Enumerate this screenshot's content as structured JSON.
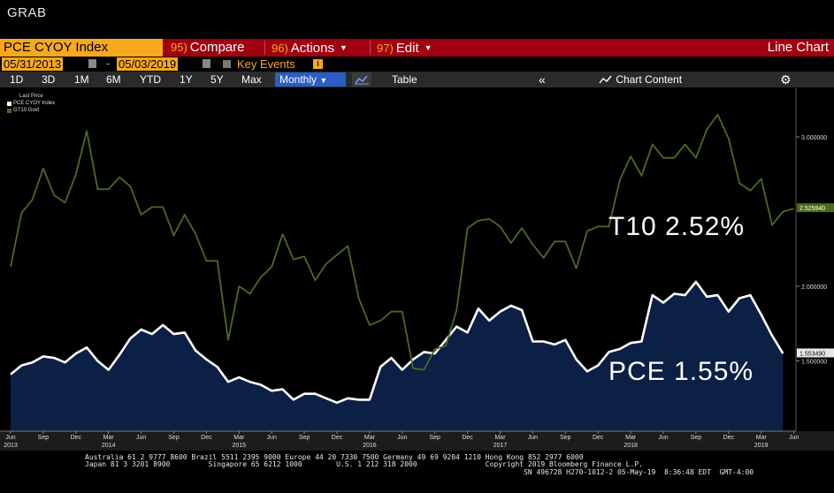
{
  "app": {
    "window_title": "GRAB"
  },
  "command_bar": {
    "ticker": "PCE CYOY Index",
    "compare": {
      "num": "95)",
      "label": "Compare"
    },
    "actions": {
      "num": "96)",
      "label": "Actions"
    },
    "edit": {
      "num": "97)",
      "label": "Edit"
    },
    "view_label": "Line Chart"
  },
  "date_range": {
    "start": "05/31/2013",
    "separator": "-",
    "end": "05/03/2019",
    "key_events_label": "Key Events",
    "info_icon": "i"
  },
  "range_buttons": [
    "1D",
    "3D",
    "1M",
    "6M",
    "YTD",
    "1Y",
    "5Y",
    "Max"
  ],
  "frequency": "Monthly",
  "table_label": "Table",
  "chart_content_label": "Chart Content",
  "icons": {
    "collapse": "double-chevron-left-icon",
    "chart_content": "chart-icon",
    "settings": "gear-icon",
    "calendar": "calendar-icon"
  },
  "colors": {
    "ticker_bg": "#f7a81b",
    "command_bar_bg": "#a0000f",
    "pce_line": "#ffffff",
    "pce_fill": "#0c1f45",
    "gt10_line": "#4c6b1a",
    "monthly_btn": "#2b5dc6"
  },
  "annotations": {
    "t10": "T10 2.52%",
    "pce": "PCE 1.55%"
  },
  "chart_data": {
    "type": "line",
    "legend_title": "Last Price",
    "legend_position": "top-left",
    "grid": false,
    "ylim": [
      1.2,
      3.3
    ],
    "y_ticks": [
      "3.000000",
      "2.000000",
      "1.500000"
    ],
    "y_tick_values": [
      3.0,
      2.0,
      1.5
    ],
    "last_value_labels": [
      {
        "series": "GT10 Govt",
        "value": 2.52594,
        "label": "2.525940"
      },
      {
        "series": "PCE CYOY Index",
        "value": 1.55349,
        "label": "1.553490"
      }
    ],
    "x_tick_labels": [
      "Jun",
      "Sep",
      "Dec",
      "Mar",
      "Jun",
      "Sep",
      "Dec",
      "Mar",
      "Jun",
      "Sep",
      "Dec",
      "Mar",
      "Jun",
      "Sep",
      "Dec",
      "Mar",
      "Jun",
      "Sep",
      "Dec",
      "Mar",
      "Jun",
      "Sep",
      "Dec",
      "Mar",
      "Jun"
    ],
    "x_tick_months": [
      0,
      3,
      6,
      9,
      12,
      15,
      18,
      21,
      24,
      27,
      30,
      33,
      36,
      39,
      42,
      45,
      48,
      51,
      54,
      57,
      60,
      63,
      66,
      69,
      72
    ],
    "year_labels": [
      {
        "label": "2013",
        "month": 0
      },
      {
        "label": "2014",
        "month": 9
      },
      {
        "label": "2015",
        "month": 21
      },
      {
        "label": "2016",
        "month": 33
      },
      {
        "label": "2017",
        "month": 45
      },
      {
        "label": "2018",
        "month": 57
      },
      {
        "label": "2019",
        "month": 69
      }
    ],
    "x_start": "2013-05",
    "series": [
      {
        "name": "PCE CYOY Index",
        "values": [
          1.41,
          1.47,
          1.49,
          1.53,
          1.52,
          1.49,
          1.55,
          1.59,
          1.5,
          1.44,
          1.54,
          1.65,
          1.71,
          1.68,
          1.74,
          1.68,
          1.69,
          1.57,
          1.51,
          1.46,
          1.36,
          1.39,
          1.36,
          1.34,
          1.3,
          1.31,
          1.24,
          1.28,
          1.28,
          1.25,
          1.22,
          1.25,
          1.24,
          1.24,
          1.46,
          1.52,
          1.44,
          1.51,
          1.56,
          1.55,
          1.64,
          1.73,
          1.69,
          1.85,
          1.77,
          1.83,
          1.87,
          1.84,
          1.63,
          1.63,
          1.61,
          1.64,
          1.51,
          1.43,
          1.47,
          1.56,
          1.58,
          1.62,
          1.63,
          1.94,
          1.89,
          1.95,
          1.94,
          2.03,
          1.93,
          1.94,
          1.83,
          1.92,
          1.94,
          1.81,
          1.67,
          1.55
        ]
      },
      {
        "name": "GT10 Govt",
        "values": [
          2.13,
          2.49,
          2.58,
          2.79,
          2.61,
          2.56,
          2.75,
          3.04,
          2.65,
          2.65,
          2.73,
          2.67,
          2.48,
          2.53,
          2.53,
          2.34,
          2.48,
          2.35,
          2.17,
          2.17,
          1.64,
          2.0,
          1.95,
          2.06,
          2.13,
          2.35,
          2.18,
          2.2,
          2.04,
          2.15,
          2.21,
          2.27,
          1.92,
          1.74,
          1.77,
          1.83,
          1.83,
          1.45,
          1.44,
          1.58,
          1.6,
          1.84,
          2.39,
          2.44,
          2.45,
          2.4,
          2.29,
          2.39,
          2.28,
          2.19,
          2.3,
          2.3,
          2.12,
          2.37,
          2.4,
          2.4,
          2.71,
          2.87,
          2.74,
          2.95,
          2.86,
          2.86,
          2.95,
          2.86,
          3.05,
          3.15,
          2.99,
          2.69,
          2.64,
          2.72,
          2.41,
          2.5,
          2.52
        ]
      }
    ]
  },
  "footer": {
    "line1": "Australia 61 2 9777 8600 Brazil 5511 2395 9000 Europe 44 20 7330 7500 Germany 49 69 9204 1210 Hong Kong 852 2977 6000",
    "line2": "Japan 81 3 3201 8900         Singapore 65 6212 1000        U.S. 1 212 318 2000                Copyright 2019 Bloomberg Finance L.P.",
    "line3": "SN 496728 H270-1012-2 05-May-19  8:36:48 EDT  GMT-4:00"
  }
}
